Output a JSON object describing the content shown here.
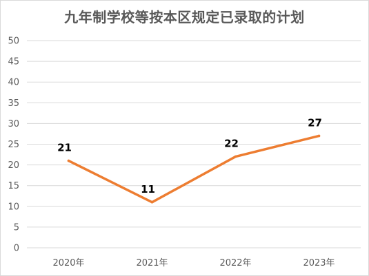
{
  "chart_data": {
    "type": "line",
    "title": "九年制学校等按本区规定已录取的计划",
    "xlabel": "",
    "ylabel": "",
    "categories": [
      "2020年",
      "2021年",
      "2022年",
      "2023年"
    ],
    "series": [
      {
        "values": [
          21,
          11,
          22,
          27
        ],
        "color": "#ED7D31"
      }
    ],
    "ylim": [
      0,
      50
    ],
    "yticks": [
      0,
      5,
      10,
      15,
      20,
      25,
      30,
      35,
      40,
      45,
      50
    ],
    "grid": true,
    "legend": "none",
    "data_labels": [
      "21",
      "11",
      "22",
      "27"
    ]
  }
}
